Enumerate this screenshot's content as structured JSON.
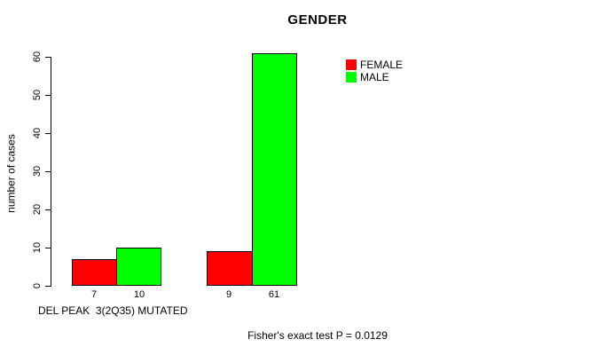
{
  "chart_data": {
    "type": "bar",
    "title": "GENDER",
    "ylabel": "number of cases",
    "xlabel": "DEL PEAK  3(2Q35) MUTATED",
    "categories": [
      "DEL PEAK 3(2Q35)",
      "MUTATED"
    ],
    "series": [
      {
        "name": "FEMALE",
        "color": "#ff0000",
        "values": [
          7,
          9
        ]
      },
      {
        "name": "MALE",
        "color": "#00ff00",
        "values": [
          10,
          61
        ]
      }
    ],
    "ylim": [
      0,
      60
    ],
    "yticks": [
      "0",
      "10",
      "20",
      "30",
      "40",
      "50",
      "60"
    ],
    "grid": false,
    "legend_position": "top-right",
    "annotation": "Fisher's exact test P = 0.0129"
  }
}
